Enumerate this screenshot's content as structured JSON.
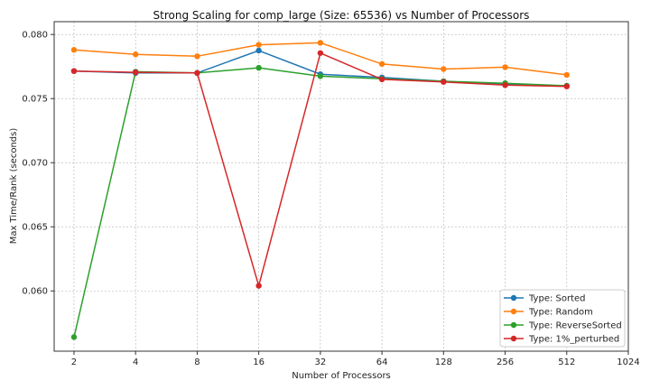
{
  "chart_data": {
    "type": "line",
    "title": "Strong Scaling for comp_large (Size: 65536) vs Number of Processors",
    "xlabel": "Number of Processors",
    "ylabel": "Max Time/Rank (seconds)",
    "x_scale": "log2",
    "x_ticks": [
      2,
      4,
      8,
      16,
      32,
      64,
      128,
      256,
      512,
      1024
    ],
    "xlim": [
      1.6,
      1024
    ],
    "y_ticks": [
      0.06,
      0.065,
      0.07,
      0.075,
      0.08
    ],
    "y_tick_labels": [
      "0.060",
      "0.065",
      "0.070",
      "0.075",
      "0.080"
    ],
    "ylim": [
      0.0553,
      0.081
    ],
    "grid": true,
    "legend_position": "bottom-right",
    "series": [
      {
        "name": "Type: Sorted",
        "color": "#1f77b4",
        "x": [
          2,
          4,
          8,
          16,
          32,
          64,
          128,
          256,
          512
        ],
        "y": [
          0.07715,
          0.077,
          0.077,
          0.07875,
          0.0769,
          0.07665,
          0.07635,
          0.0761,
          0.076
        ]
      },
      {
        "name": "Type: Random",
        "color": "#ff7f0e",
        "x": [
          2,
          4,
          8,
          16,
          32,
          64,
          128,
          256,
          512
        ],
        "y": [
          0.0788,
          0.07845,
          0.0783,
          0.0792,
          0.07935,
          0.0777,
          0.0773,
          0.07745,
          0.07685
        ]
      },
      {
        "name": "Type: ReverseSorted",
        "color": "#2ca02c",
        "x": [
          2,
          4,
          8,
          16,
          32,
          64,
          128,
          256,
          512
        ],
        "y": [
          0.0564,
          0.0771,
          0.077,
          0.0774,
          0.07675,
          0.07655,
          0.07635,
          0.0762,
          0.076
        ]
      },
      {
        "name": "Type: 1%_perturbed",
        "color": "#d62728",
        "x": [
          2,
          4,
          8,
          16,
          32,
          64,
          128,
          256,
          512
        ],
        "y": [
          0.07715,
          0.07705,
          0.077,
          0.0604,
          0.07855,
          0.0765,
          0.0763,
          0.07605,
          0.07595
        ]
      }
    ]
  }
}
